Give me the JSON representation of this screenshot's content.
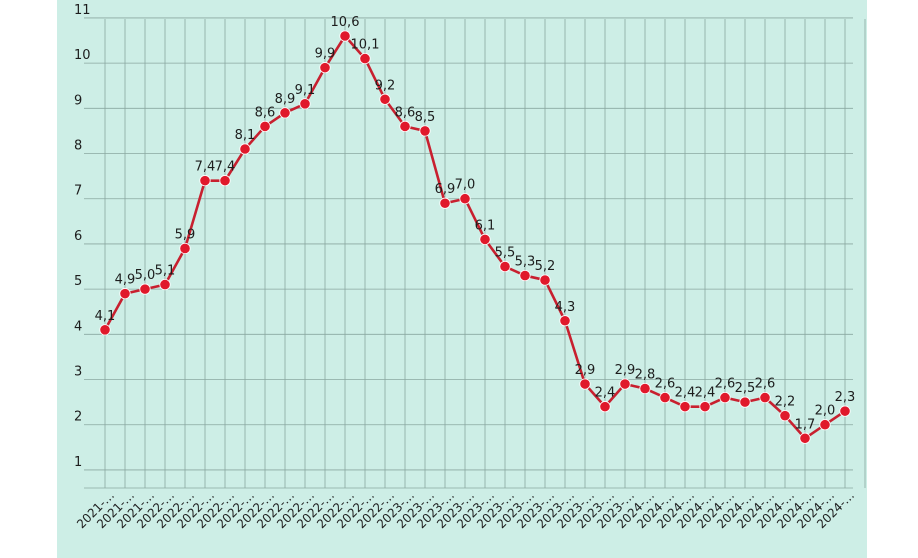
{
  "chart_data": {
    "type": "line",
    "title": "",
    "xlabel": "",
    "ylabel": "",
    "ylim": [
      1,
      11
    ],
    "yticks": [
      1,
      2,
      3,
      4,
      5,
      6,
      7,
      8,
      9,
      10,
      11
    ],
    "grid": true,
    "line_color": "#c8202f",
    "marker_color": "#e0192b",
    "x": [
      "2021-…",
      "2021-…",
      "2021-…",
      "2022-…",
      "2022-…",
      "2022-…",
      "2022-…",
      "2022-…",
      "2022-…",
      "2022-…",
      "2022-…",
      "2022-…",
      "2022-…",
      "2022-…",
      "2022-…",
      "2023-…",
      "2023-…",
      "2023-…",
      "2023-…",
      "2023-…",
      "2023-…",
      "2023-…",
      "2023-…",
      "2023-…",
      "2023-…",
      "2023-…",
      "2023-…",
      "2024-…",
      "2024-…",
      "2024-…",
      "2024-…",
      "2024-…",
      "2024-…",
      "2024-…",
      "2024-…",
      "2024-…",
      "2024-…",
      "2024-…"
    ],
    "values": [
      4.1,
      4.9,
      5.0,
      5.1,
      5.9,
      7.4,
      7.4,
      8.1,
      8.6,
      8.9,
      9.1,
      9.9,
      10.6,
      10.1,
      9.2,
      8.6,
      8.5,
      6.9,
      7.0,
      6.1,
      5.5,
      5.3,
      5.2,
      4.3,
      2.9,
      2.4,
      2.9,
      2.8,
      2.6,
      2.4,
      2.4,
      2.6,
      2.5,
      2.6,
      2.2,
      1.7,
      2.0,
      2.3
    ],
    "labels": [
      "4,1",
      "4,9",
      "5,0",
      "5,1",
      "5,9",
      "7,4",
      "7,4",
      "8,1",
      "8,6",
      "8,9",
      "9,1",
      "9,9",
      "10,6",
      "10,1",
      "9,2",
      "8,6",
      "8,5",
      "6,9",
      "7,0",
      "6,1",
      "5,5",
      "5,3",
      "5,2",
      "4,3",
      "2,9",
      "2,4",
      "2,9",
      "2,8",
      "2,6",
      "2,4",
      "2,4",
      "2,6",
      "2,5",
      "2,6",
      "2,2",
      "1,7",
      "2,0",
      "2,3"
    ]
  }
}
